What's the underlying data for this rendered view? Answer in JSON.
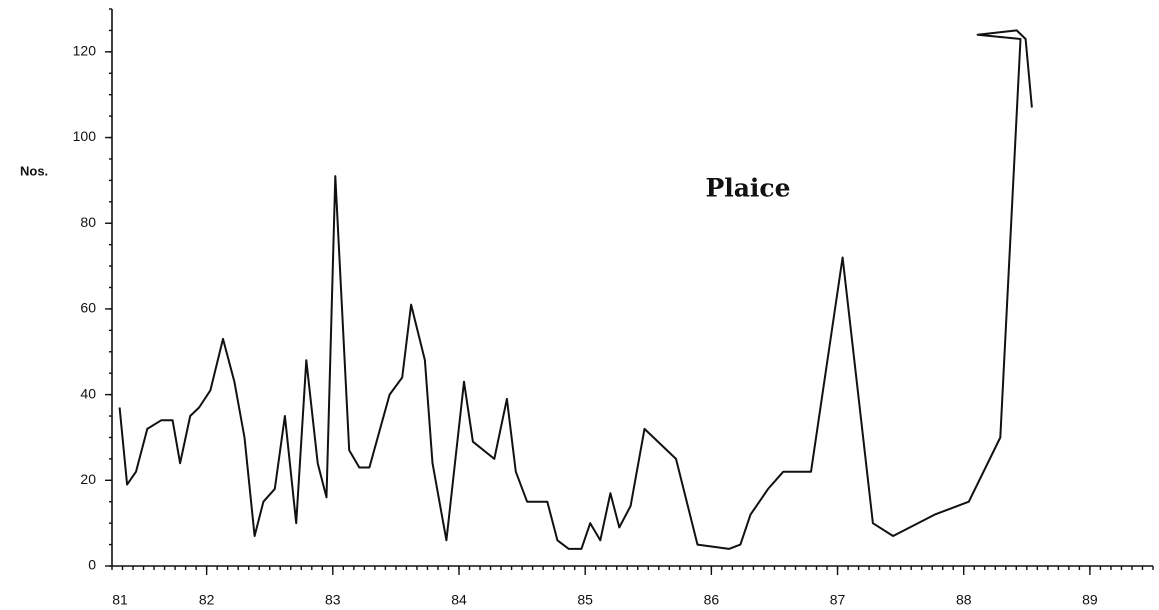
{
  "chart_data": {
    "type": "line",
    "title": "Plaice",
    "y_label": "Nos.",
    "x": [
      81.31,
      81.37,
      81.44,
      81.53,
      81.64,
      81.73,
      81.79,
      81.87,
      81.94,
      82.03,
      82.13,
      82.22,
      82.3,
      82.38,
      82.45,
      82.54,
      82.62,
      82.71,
      82.79,
      82.88,
      82.95,
      83.02,
      83.13,
      83.21,
      83.29,
      83.45,
      83.55,
      83.62,
      83.73,
      83.79,
      83.9,
      84.04,
      84.11,
      84.28,
      84.38,
      84.45,
      84.54,
      84.7,
      84.78,
      84.87,
      84.97,
      85.04,
      85.12,
      85.2,
      85.27,
      85.36,
      85.47,
      85.72,
      85.89,
      86.14,
      86.23,
      86.31,
      86.45,
      86.57,
      86.79,
      87.04,
      87.28,
      87.44,
      87.77,
      88.04,
      88.29,
      88.45,
      88.11,
      88.42,
      88.49,
      88.54
    ],
    "values": [
      37,
      19,
      22,
      32,
      34,
      34,
      24,
      35,
      37,
      41,
      53,
      43,
      30,
      7,
      15,
      18,
      35,
      10,
      48,
      24,
      16,
      91,
      27,
      23,
      23,
      40,
      44,
      61,
      48,
      24,
      6,
      43,
      29,
      25,
      39,
      22,
      15,
      15,
      6,
      4,
      4,
      10,
      6,
      17,
      9,
      14,
      32,
      25,
      5,
      4,
      5,
      12,
      18,
      22,
      22,
      72,
      10,
      7,
      12,
      15,
      30,
      123,
      124,
      125,
      123,
      107
    ],
    "color": "#111111",
    "xlim": [
      81.25,
      89.5
    ],
    "xticks": [
      81,
      82,
      83,
      84,
      85,
      86,
      87,
      88,
      89
    ],
    "ylim": [
      0,
      130
    ],
    "yticks": [
      0,
      20,
      40,
      60,
      80,
      100,
      120
    ]
  }
}
